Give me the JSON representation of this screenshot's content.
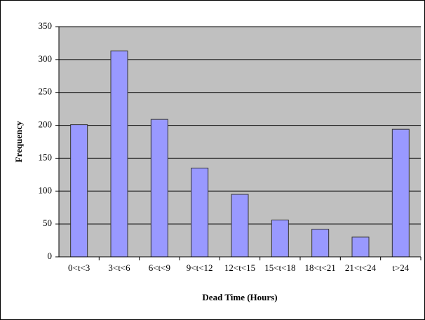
{
  "chart_data": {
    "type": "bar",
    "x_label": "Dead Time (Hours)",
    "y_label": "Frequency",
    "categories": [
      "0<t<3",
      "3<t<6",
      "6<t<9",
      "9<t<12",
      "12<t<15",
      "15<t<18",
      "18<t<21",
      "21<t<24",
      "t>24"
    ],
    "values": [
      201,
      313,
      209,
      135,
      95,
      56,
      42,
      30,
      194
    ],
    "color": "#9999ff",
    "ylim": [
      0,
      350
    ],
    "yticks": [
      0,
      50,
      100,
      150,
      200,
      250,
      300,
      350
    ],
    "grid": true
  }
}
